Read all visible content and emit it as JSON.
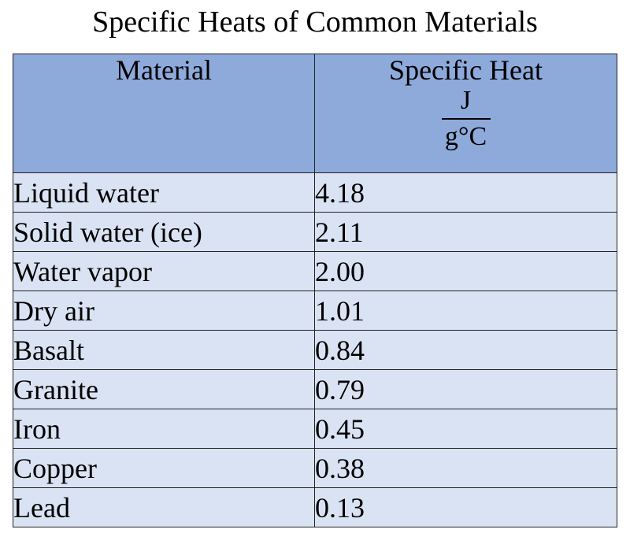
{
  "title": "Specific Heats of Common Materials",
  "table": {
    "header": {
      "material": "Material",
      "specific_heat": "Specific Heat",
      "unit_numerator": "J",
      "unit_denominator": "g°C"
    },
    "rows": [
      {
        "material": "Liquid water",
        "value": "4.18"
      },
      {
        "material": "Solid water (ice)",
        "value": "2.11"
      },
      {
        "material": "Water vapor",
        "value": "2.00"
      },
      {
        "material": "Dry air",
        "value": "1.01"
      },
      {
        "material": "Basalt",
        "value": "0.84"
      },
      {
        "material": "Granite",
        "value": "0.79"
      },
      {
        "material": "Iron",
        "value": "0.45"
      },
      {
        "material": "Copper",
        "value": "0.38"
      },
      {
        "material": "Lead",
        "value": "0.13"
      }
    ]
  },
  "colors": {
    "header_background": "#8eaadb",
    "row_background": "#dae3f3",
    "border": "#222222"
  }
}
